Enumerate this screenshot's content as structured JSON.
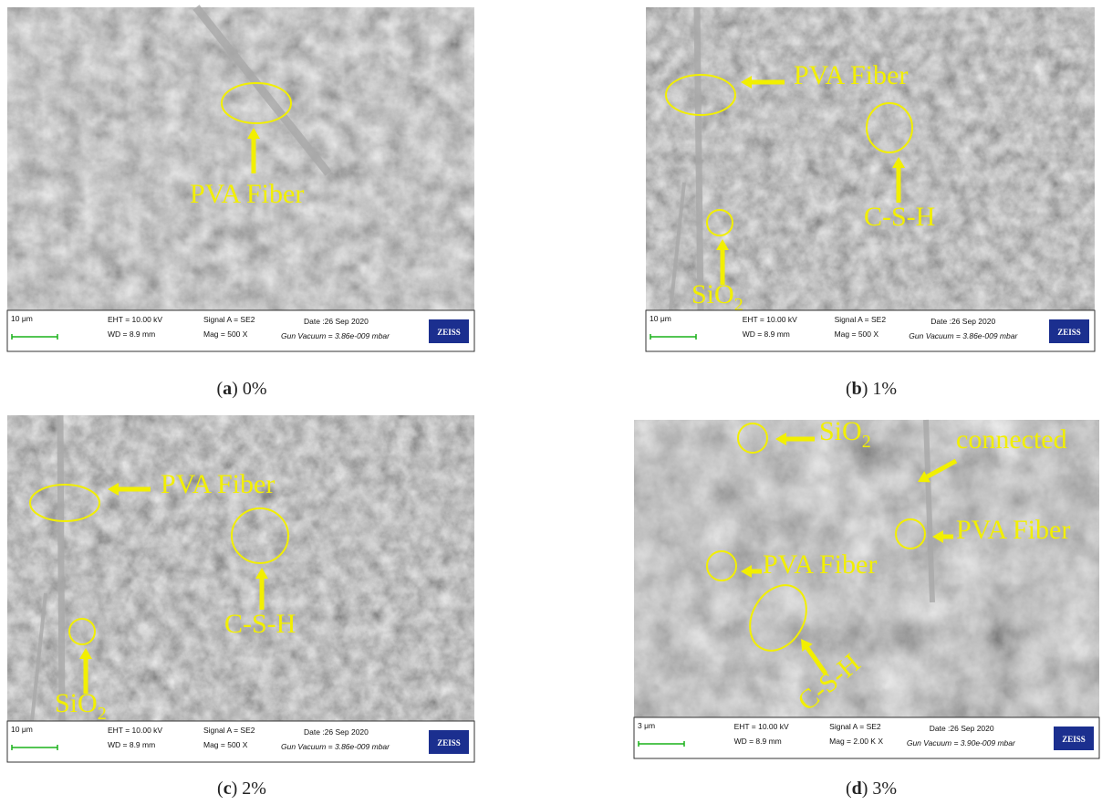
{
  "panels": [
    {
      "annotations": [
        {
          "text": "PVA Fiber"
        }
      ],
      "info": {
        "scale": "10 μm",
        "eht": "EHT = 10.00 kV",
        "wd": "WD = 8.9 mm",
        "signal": "Signal A = SE2",
        "mag": "Mag =  500 X",
        "date": "Date :26 Sep 2020",
        "vacuum": "Gun Vacuum = 3.86e-009 mbar",
        "brand": "ZEISS"
      },
      "caption": {
        "before": "(",
        "letter": "a",
        "after": ") 0%"
      }
    },
    {
      "annotations": [
        {
          "text": "PVA Fiber"
        },
        {
          "text": "C-S-H"
        },
        {
          "text": "SiO",
          "sub": "2"
        }
      ],
      "info": {
        "scale": "10 μm",
        "eht": "EHT = 10.00 kV",
        "wd": "WD = 8.9 mm",
        "signal": "Signal A = SE2",
        "mag": "Mag =   500 X",
        "date": "Date :26 Sep 2020",
        "vacuum": "Gun Vacuum = 3.86e-009 mbar",
        "brand": "ZEISS"
      },
      "caption": {
        "before": "(",
        "letter": "b",
        "after": ") 1%"
      }
    },
    {
      "annotations": [
        {
          "text": "PVA Fiber"
        },
        {
          "text": "C-S-H"
        },
        {
          "text": "SiO",
          "sub": "2"
        }
      ],
      "info": {
        "scale": "10 μm",
        "eht": "EHT = 10.00 kV",
        "wd": "WD = 8.9 mm",
        "signal": "Signal A = SE2",
        "mag": "Mag =   500 X",
        "date": "Date :26 Sep 2020",
        "vacuum": "Gun Vacuum = 3.86e-009 mbar",
        "brand": "ZEISS"
      },
      "caption": {
        "before": "(",
        "letter": "c",
        "after": ") 2%"
      }
    },
    {
      "annotations": [
        {
          "text": "SiO",
          "sub": "2"
        },
        {
          "text": "connected"
        },
        {
          "text": "PVA Fiber"
        },
        {
          "text": "PVA Fiber"
        },
        {
          "text": "C-S-H"
        }
      ],
      "info": {
        "scale": "3 μm",
        "eht": "EHT = 10.00 kV",
        "wd": "WD = 8.9 mm",
        "signal": "Signal A = SE2",
        "mag": "Mag =  2.00 K X",
        "date": "Date :26 Sep 2020",
        "vacuum": "Gun Vacuum = 3.90e-009 mbar",
        "brand": "ZEISS"
      },
      "caption": {
        "before": "(",
        "letter": "d",
        "after": ") 3%"
      }
    }
  ]
}
